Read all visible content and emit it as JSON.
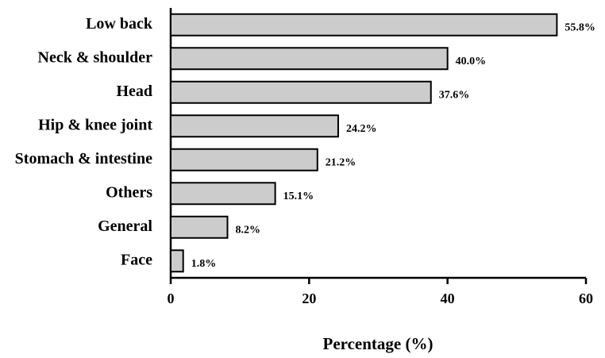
{
  "chart_data": {
    "type": "bar",
    "orientation": "horizontal",
    "x_label": "Percentage (%)",
    "categories": [
      "Low back",
      "Neck & shoulder",
      "Head",
      "Hip & knee joint",
      "Stomach & intestine",
      "Others",
      "General",
      "Face"
    ],
    "values": [
      55.8,
      40.0,
      37.6,
      24.2,
      21.2,
      15.1,
      8.2,
      1.8
    ],
    "value_labels": [
      "55.8%",
      "40.0%",
      "37.6%",
      "24.2%",
      "21.2%",
      "15.1%",
      "8.2%",
      "1.8%"
    ],
    "color": "#cccccc",
    "xlim": [
      0,
      60
    ],
    "xticks": [
      0,
      20,
      40,
      60
    ]
  }
}
